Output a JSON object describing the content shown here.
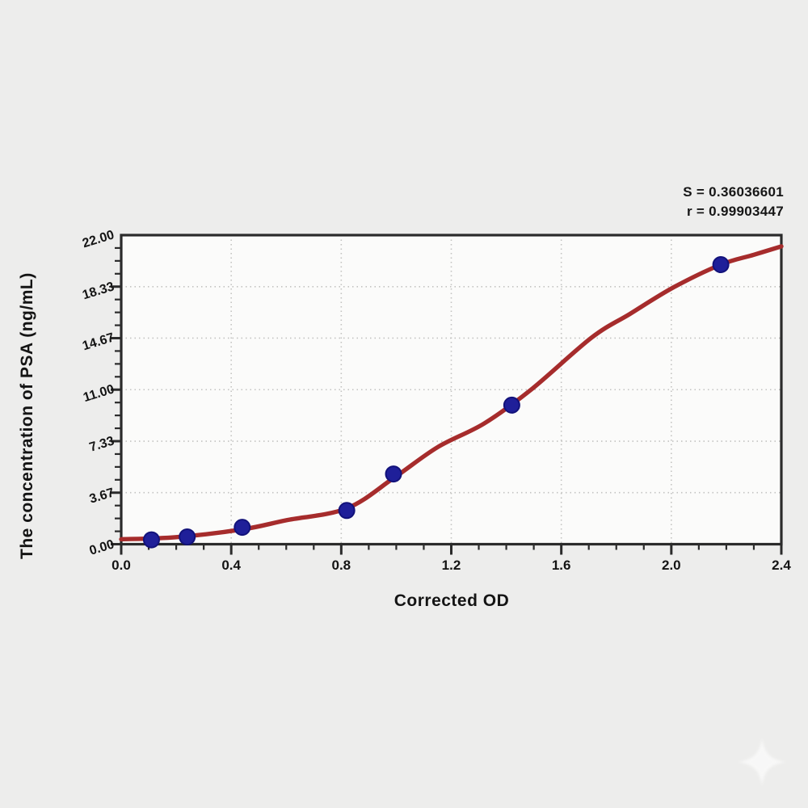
{
  "annotation": {
    "line1": "S = 0.36036601",
    "line2": "r = 0.99903447"
  },
  "chart_data": {
    "type": "scatter",
    "title": "",
    "xlabel": "Corrected OD",
    "ylabel": "The concentration of PSA (ng/mL)",
    "xlim": [
      0,
      2.4
    ],
    "ylim": [
      0,
      22
    ],
    "x_tick_labels": [
      "0.0",
      "0.4",
      "0.8",
      "1.2",
      "1.6",
      "2.0",
      "2.4"
    ],
    "x_tick_values": [
      0,
      0.4,
      0.8,
      1.2,
      1.6,
      2.0,
      2.4
    ],
    "x_minor_step": 0.1,
    "y_tick_labels": [
      "0.00",
      "3.67",
      "7.33",
      "11.00",
      "14.67",
      "18.33",
      "22.00"
    ],
    "y_tick_values": [
      0,
      3.67,
      7.33,
      11.0,
      14.67,
      18.33,
      22.0
    ],
    "y_minor_step": 0.9167,
    "grid": "dotted-major",
    "legend": "none",
    "fit_stats": {
      "S": "0.36036601",
      "r": "0.99903447"
    },
    "series": [
      {
        "name": "standard-points",
        "type": "scatter",
        "color": "#1f1f99",
        "edge_color": "#12127a",
        "points": [
          [
            0.11,
            0.31
          ],
          [
            0.24,
            0.52
          ],
          [
            0.44,
            1.2
          ],
          [
            0.82,
            2.4
          ],
          [
            0.99,
            5.0
          ],
          [
            1.42,
            9.9
          ],
          [
            2.18,
            19.9
          ]
        ]
      },
      {
        "name": "4PL-fit-curve",
        "type": "line",
        "color": "#a62c2c",
        "points": [
          [
            0.0,
            0.35
          ],
          [
            0.2,
            0.5
          ],
          [
            0.44,
            1.05
          ],
          [
            0.6,
            1.7
          ],
          [
            0.82,
            2.55
          ],
          [
            0.99,
            4.7
          ],
          [
            1.15,
            6.9
          ],
          [
            1.32,
            8.6
          ],
          [
            1.49,
            11.0
          ],
          [
            1.71,
            14.7
          ],
          [
            1.85,
            16.4
          ],
          [
            2.01,
            18.3
          ],
          [
            2.18,
            19.9
          ],
          [
            2.3,
            20.6
          ],
          [
            2.4,
            21.2
          ]
        ]
      }
    ]
  },
  "colors": {
    "background": "#ededec",
    "plot_background": "#fbfbfa",
    "axis": "#2b2b2b",
    "grid": "#c3c3c1",
    "curve": "#a62c2c",
    "point": "#1f1f99",
    "text": "#141414"
  }
}
